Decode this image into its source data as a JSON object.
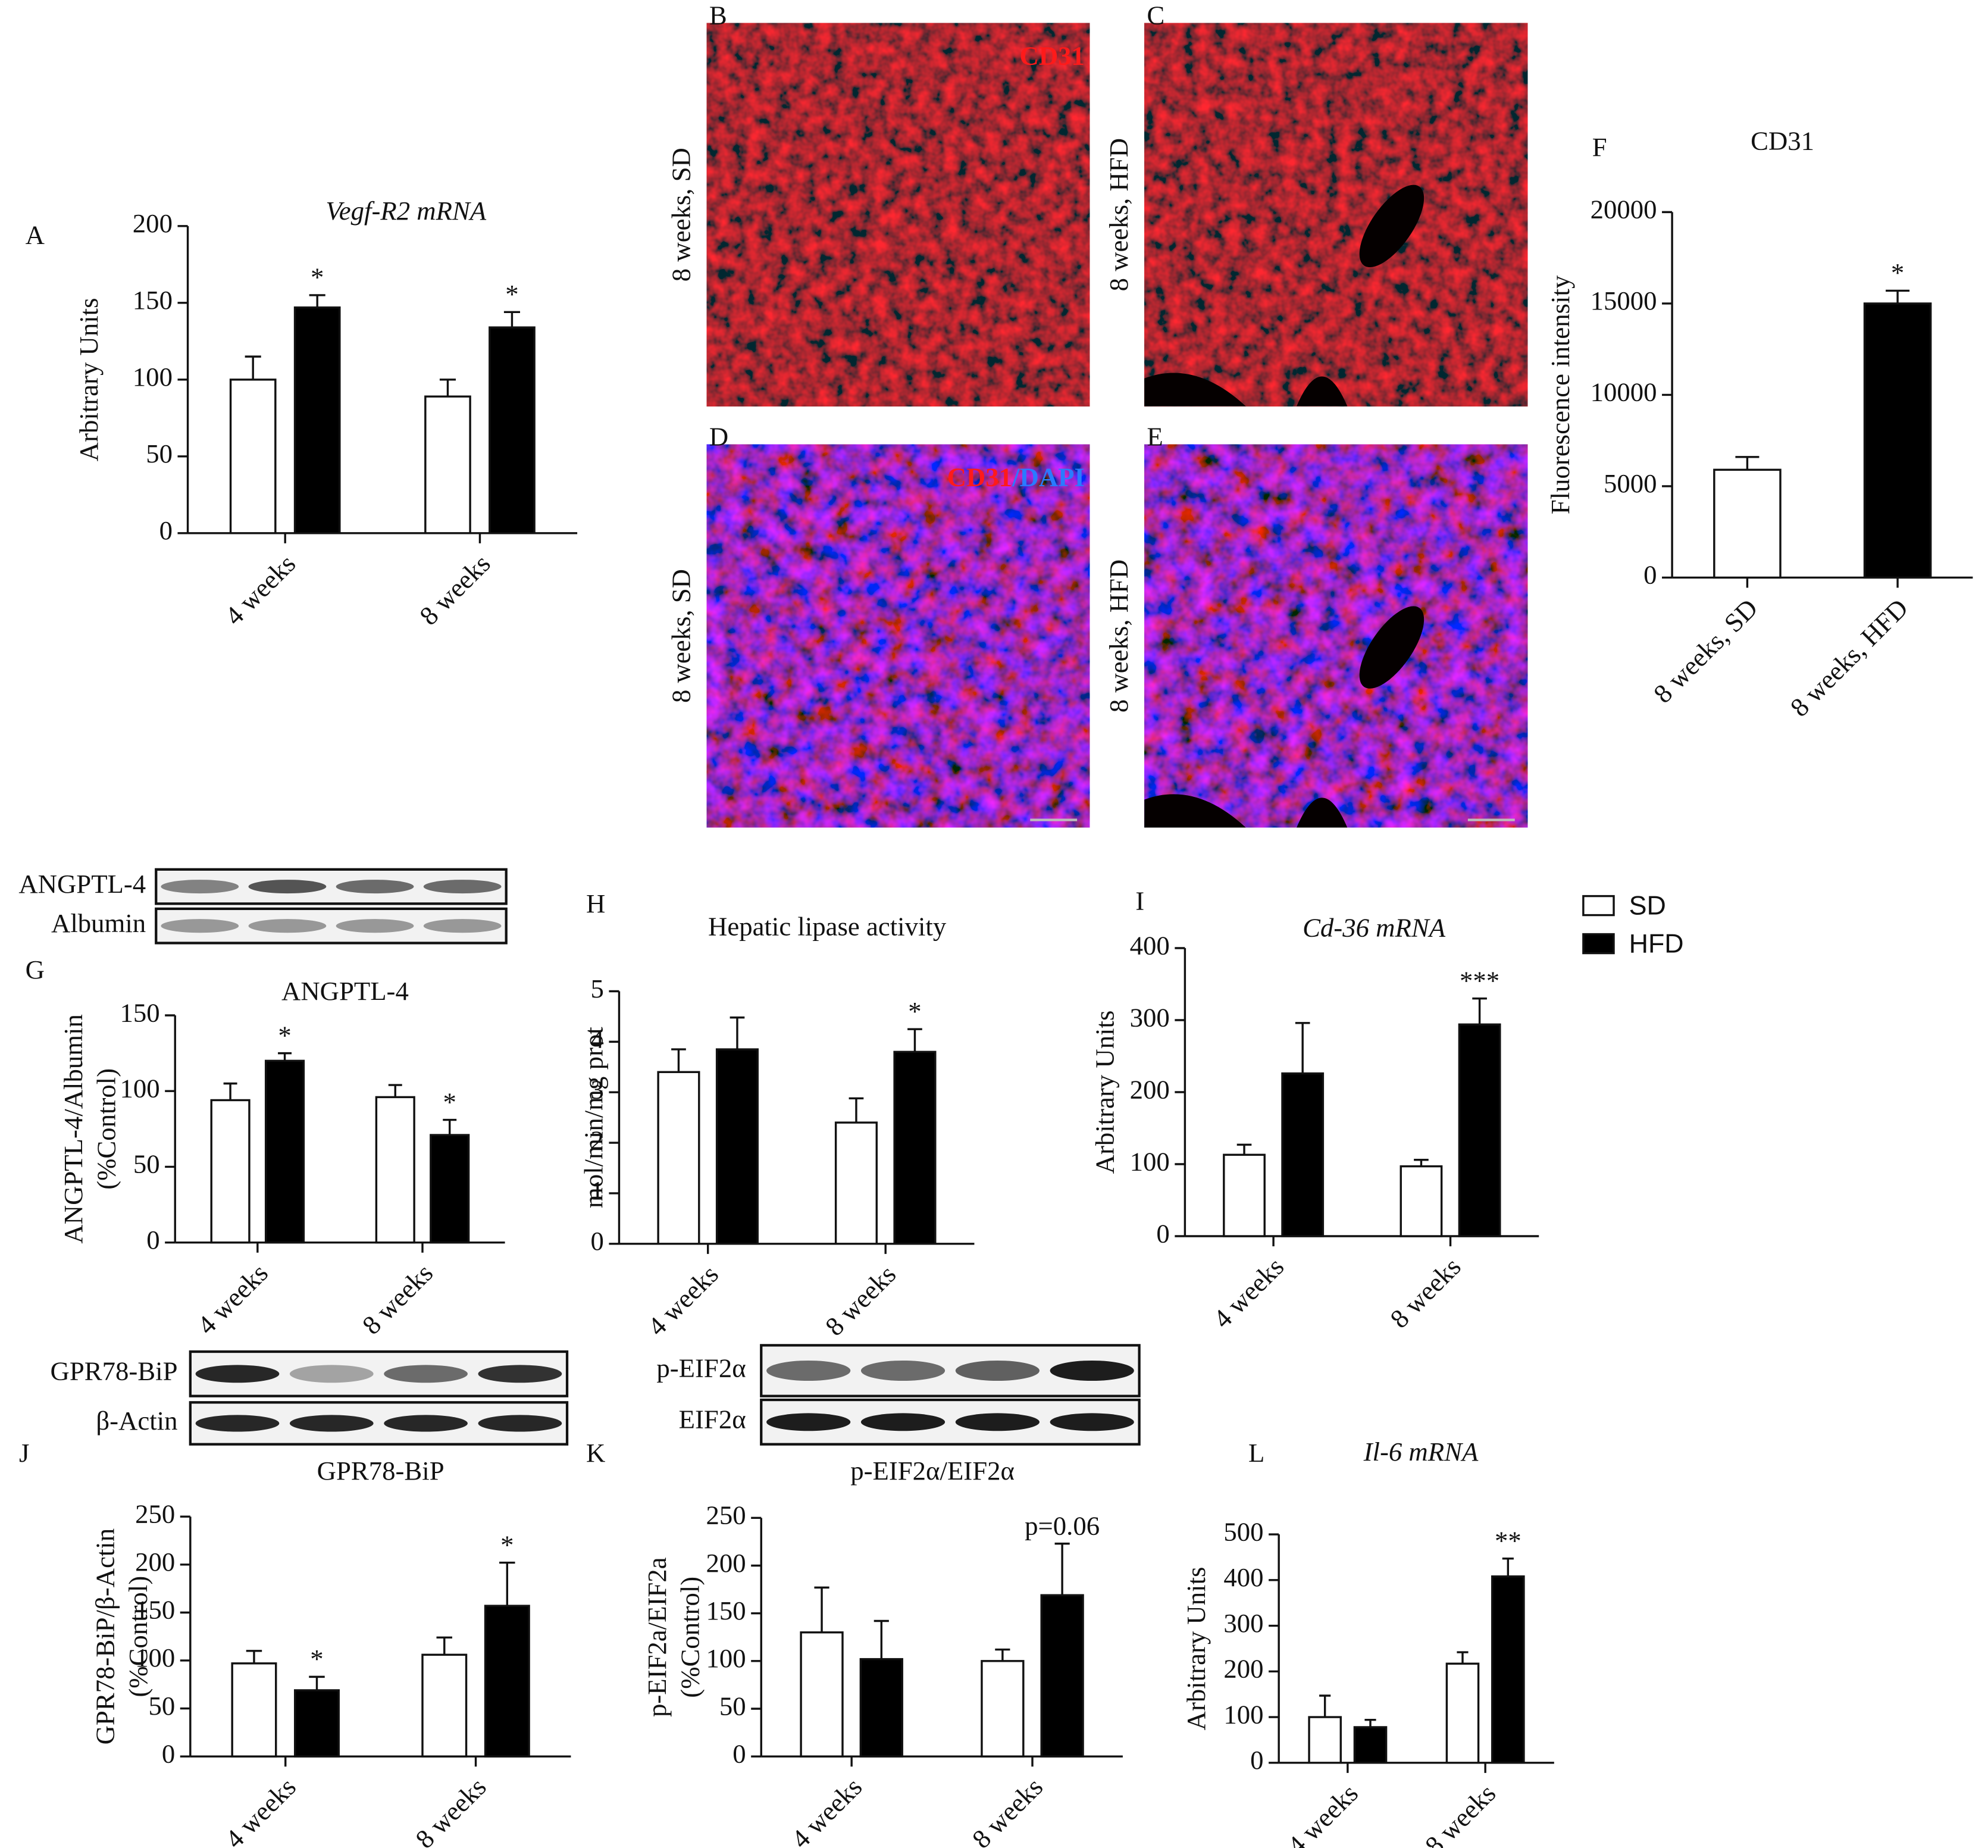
{
  "chart_data": [
    {
      "type": "bar",
      "panel": "A",
      "title": "Vegf-R2 mRNA",
      "title_style": "italic",
      "ylabel": "Arbitrary Units",
      "categories": [
        "4 weeks",
        "8 weeks"
      ],
      "ylim": [
        0,
        200
      ],
      "yticks": [
        0,
        50,
        100,
        150,
        200
      ],
      "series": [
        {
          "color": "#ffffff",
          "values": [
            100,
            89
          ],
          "errors": [
            15,
            11
          ]
        },
        {
          "color": "#000000",
          "values": [
            147,
            134
          ],
          "errors": [
            8,
            10
          ],
          "annotations": [
            "*",
            "*"
          ]
        }
      ]
    },
    {
      "type": "bar",
      "panel": "F",
      "title": "CD31",
      "ylabel": "Fluorescence intensity",
      "categories": [
        "8 weeks, SD",
        "8 weeks, HFD"
      ],
      "ylim": [
        0,
        20000
      ],
      "yticks": [
        0,
        5000,
        10000,
        15000,
        20000
      ],
      "values": [
        5900,
        15000
      ],
      "errors": [
        700,
        700
      ],
      "colors": [
        "#ffffff",
        "#000000"
      ],
      "annotations": [
        null,
        "*"
      ]
    },
    {
      "type": "bar",
      "panel": "G",
      "title": "ANGPTL-4",
      "ylabel": [
        "ANGPTL-4/Albumin",
        "(%Control)"
      ],
      "categories": [
        "4 weeks",
        "8 weeks"
      ],
      "ylim": [
        0,
        150
      ],
      "yticks": [
        0,
        50,
        100,
        150
      ],
      "series": [
        {
          "color": "#ffffff",
          "values": [
            94,
            96
          ],
          "errors": [
            11,
            8
          ]
        },
        {
          "color": "#000000",
          "values": [
            120,
            71
          ],
          "errors": [
            5,
            10
          ],
          "annotations": [
            "*",
            "*"
          ]
        }
      ]
    },
    {
      "type": "bar",
      "panel": "H",
      "title": "Hepatic lipase activity",
      "ylabel": "mol/min/mg prot",
      "categories": [
        "4 weeks",
        "8 weeks"
      ],
      "ylim": [
        0,
        5
      ],
      "yticks": [
        0,
        1,
        2,
        3,
        4,
        5
      ],
      "series": [
        {
          "color": "#ffffff",
          "values": [
            3.4,
            2.4
          ],
          "errors": [
            0.45,
            0.48
          ]
        },
        {
          "color": "#000000",
          "values": [
            3.85,
            3.8
          ],
          "errors": [
            0.63,
            0.45
          ],
          "annotations": [
            null,
            "*"
          ]
        }
      ]
    },
    {
      "type": "bar",
      "panel": "I",
      "title": "Cd-36 mRNA",
      "title_style": "italic",
      "ylabel": "Arbitrary Units",
      "categories": [
        "4 weeks",
        "8 weeks"
      ],
      "ylim": [
        0,
        400
      ],
      "yticks": [
        0,
        100,
        200,
        300,
        400
      ],
      "legend": "right",
      "series": [
        {
          "name": "SD",
          "color": "#ffffff",
          "values": [
            113,
            97
          ],
          "errors": [
            14,
            9
          ]
        },
        {
          "name": "HFD",
          "color": "#000000",
          "values": [
            226,
            294
          ],
          "errors": [
            70,
            36
          ],
          "annotations": [
            null,
            "***"
          ]
        }
      ]
    },
    {
      "type": "bar",
      "panel": "J",
      "title": "GPR78-BiP",
      "ylabel": [
        "GPR78-BiP/β-Actin",
        "(%Control)"
      ],
      "categories": [
        "4 weeks",
        "8 weeks"
      ],
      "ylim": [
        0,
        250
      ],
      "yticks": [
        0,
        50,
        100,
        150,
        200,
        250
      ],
      "series": [
        {
          "color": "#ffffff",
          "values": [
            97,
            106
          ],
          "errors": [
            13,
            18
          ]
        },
        {
          "color": "#000000",
          "values": [
            69,
            157
          ],
          "errors": [
            14,
            45
          ],
          "annotations": [
            "*",
            "*"
          ]
        }
      ]
    },
    {
      "type": "bar",
      "panel": "K",
      "title": "p-EIF2α/EIF2α",
      "ylabel": [
        "p-EIF2a/EIF2a",
        "(%Control)"
      ],
      "categories": [
        "4 weeks",
        "8 weeks"
      ],
      "ylim": [
        0,
        250
      ],
      "yticks": [
        0,
        50,
        100,
        150,
        200,
        250
      ],
      "series": [
        {
          "color": "#ffffff",
          "values": [
            130,
            100
          ],
          "errors": [
            47,
            12
          ]
        },
        {
          "color": "#000000",
          "values": [
            102,
            169
          ],
          "errors": [
            40,
            54
          ],
          "annotations": [
            null,
            "p=0.06"
          ]
        }
      ]
    },
    {
      "type": "bar",
      "panel": "L",
      "title": "Il-6 mRNA",
      "title_style": "italic",
      "ylabel": "Arbitrary Units",
      "categories": [
        "4 weeks",
        "8 weeks"
      ],
      "ylim": [
        0,
        500
      ],
      "yticks": [
        0,
        100,
        200,
        300,
        400,
        500
      ],
      "series": [
        {
          "color": "#ffffff",
          "values": [
            100,
            217
          ],
          "errors": [
            47,
            25
          ]
        },
        {
          "color": "#000000",
          "values": [
            78,
            408
          ],
          "errors": [
            16,
            39
          ],
          "annotations": [
            null,
            "**"
          ]
        }
      ]
    }
  ],
  "images": [
    {
      "panel": "B",
      "label": "8 weeks, SD",
      "stain": [
        {
          "text": "CD31",
          "color": "#ff1a1a"
        }
      ]
    },
    {
      "panel": "C",
      "label": "8 weeks, HFD"
    },
    {
      "panel": "D",
      "label": "8 weeks, SD",
      "stain": [
        {
          "text": "CD31",
          "color": "#ff1a1a"
        },
        {
          "text": "/DAPI",
          "color": "#2a7bff"
        }
      ]
    },
    {
      "panel": "E",
      "label": "8 weeks, HFD"
    }
  ],
  "blots": [
    {
      "rows": [
        "ANGPTL-4",
        "Albumin"
      ]
    },
    {
      "rows": [
        "GPR78-BiP",
        "β-Actin"
      ]
    },
    {
      "rows": [
        "p-EIF2α",
        "EIF2α"
      ]
    }
  ]
}
